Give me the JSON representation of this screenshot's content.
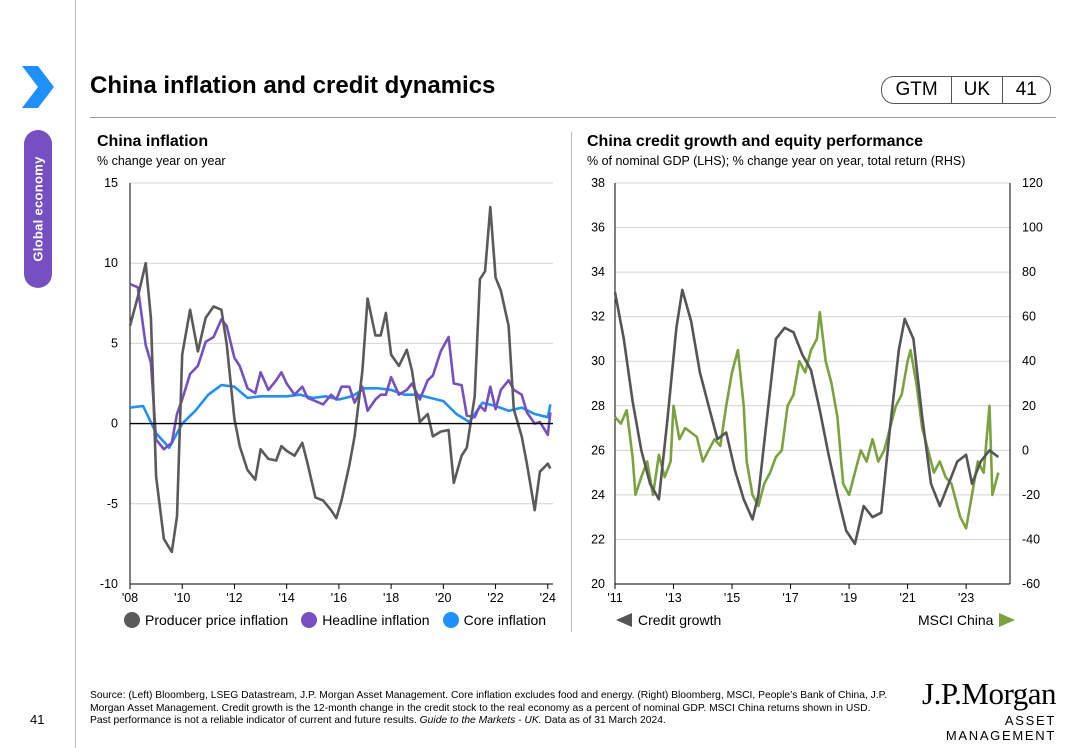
{
  "side_tab": "Global economy",
  "title": "China inflation and credit dynamics",
  "badge": {
    "c1": "GTM",
    "c2": "UK",
    "c3": "41"
  },
  "page_number": "41",
  "footnote": {
    "main": "Source: (Left) Bloomberg, LSEG Datastream, J.P. Morgan Asset Management. Core inflation excludes food and energy. (Right) Bloomberg, MSCI, People’s Bank of China, J.P. Morgan Asset Management. Credit growth is the 12-month change in the credit stock to the real economy as a percent of nominal GDP. MSCI China returns shown in USD. Past performance is not a reliable indicator of current and future results. ",
    "italic": "Guide to the Markets - UK.",
    "end": " Data as of 31 March 2024."
  },
  "logo": {
    "line1": "J.P.Morgan",
    "line2": "ASSET MANAGEMENT"
  },
  "colors": {
    "ppi": "#5a5a5a",
    "headline": "#7650c3",
    "core": "#1e90ff",
    "credit": "#555555",
    "msci": "#7ba23f",
    "accent": "#7650c3",
    "chevron": "#1e90ff"
  },
  "left": {
    "title": "China inflation",
    "subtitle": "% change year on year",
    "legend": {
      "ppi": "Producer price inflation",
      "headline": "Headline inflation",
      "core": "Core inflation"
    }
  },
  "right": {
    "title": "China credit growth and equity performance",
    "subtitle": "% of nominal GDP (LHS); % change year on year, total return (RHS)",
    "legend": {
      "credit": "Credit growth",
      "msci": "MSCI China"
    }
  },
  "chart_data": [
    {
      "type": "line",
      "title": "China inflation",
      "ylabel": "% change year on year",
      "ylim": [
        -10,
        15
      ],
      "yticks": [
        "15",
        "10",
        "5",
        "0",
        "-5",
        "-10"
      ],
      "ytick_values": [
        15,
        10,
        5,
        0,
        -5,
        -10
      ],
      "xlim": [
        2008.0,
        2024.2
      ],
      "xticks": [
        "'08",
        "'10",
        "'12",
        "'14",
        "'16",
        "'18",
        "'20",
        "'22",
        "'24"
      ],
      "xtick_values": [
        2008,
        2010,
        2012,
        2014,
        2016,
        2018,
        2020,
        2022,
        2024
      ],
      "series": [
        {
          "name": "Producer price inflation",
          "key": "ppi",
          "x": [
            2008.0,
            2008.3,
            2008.6,
            2008.8,
            2009.0,
            2009.3,
            2009.6,
            2009.8,
            2010.0,
            2010.3,
            2010.6,
            2010.9,
            2011.2,
            2011.5,
            2011.7,
            2012.0,
            2012.2,
            2012.5,
            2012.8,
            2013.0,
            2013.3,
            2013.6,
            2013.8,
            2014.0,
            2014.3,
            2014.6,
            2014.8,
            2015.1,
            2015.4,
            2015.7,
            2015.9,
            2016.1,
            2016.4,
            2016.6,
            2016.9,
            2017.1,
            2017.4,
            2017.6,
            2017.8,
            2018.0,
            2018.3,
            2018.6,
            2018.8,
            2019.1,
            2019.4,
            2019.6,
            2019.9,
            2020.2,
            2020.4,
            2020.7,
            2020.9,
            2021.2,
            2021.4,
            2021.6,
            2021.8,
            2022.0,
            2022.2,
            2022.5,
            2022.7,
            2023.0,
            2023.2,
            2023.5,
            2023.7,
            2024.0,
            2024.1
          ],
          "y": [
            6.1,
            7.9,
            10.0,
            6.6,
            -3.3,
            -7.2,
            -8.0,
            -5.8,
            4.3,
            7.1,
            4.5,
            6.6,
            7.3,
            7.1,
            5.0,
            0.3,
            -1.4,
            -2.9,
            -3.5,
            -1.6,
            -2.2,
            -2.3,
            -1.4,
            -1.7,
            -2.0,
            -1.2,
            -2.5,
            -4.6,
            -4.8,
            -5.4,
            -5.9,
            -4.8,
            -2.6,
            -0.8,
            3.3,
            7.8,
            5.5,
            5.5,
            6.9,
            4.3,
            3.6,
            4.6,
            3.3,
            0.1,
            0.6,
            -0.8,
            -0.5,
            -0.4,
            -3.7,
            -2.0,
            -1.5,
            1.7,
            9.0,
            9.5,
            13.5,
            9.1,
            8.3,
            6.1,
            0.9,
            -0.8,
            -2.5,
            -5.4,
            -3.0,
            -2.5,
            -2.8
          ]
        },
        {
          "name": "Headline inflation",
          "key": "headline",
          "x": [
            2008.0,
            2008.3,
            2008.6,
            2008.8,
            2009.0,
            2009.3,
            2009.6,
            2009.8,
            2010.0,
            2010.3,
            2010.6,
            2010.9,
            2011.2,
            2011.5,
            2011.7,
            2012.0,
            2012.2,
            2012.5,
            2012.8,
            2013.0,
            2013.3,
            2013.6,
            2013.8,
            2014.0,
            2014.3,
            2014.6,
            2014.8,
            2015.1,
            2015.4,
            2015.7,
            2015.9,
            2016.1,
            2016.4,
            2016.6,
            2016.9,
            2017.1,
            2017.4,
            2017.6,
            2017.8,
            2018.0,
            2018.3,
            2018.6,
            2018.8,
            2019.1,
            2019.4,
            2019.6,
            2019.9,
            2020.2,
            2020.4,
            2020.7,
            2020.9,
            2021.2,
            2021.4,
            2021.6,
            2021.8,
            2022.0,
            2022.2,
            2022.5,
            2022.7,
            2023.0,
            2023.2,
            2023.5,
            2023.7,
            2024.0,
            2024.1
          ],
          "y": [
            8.7,
            8.5,
            4.9,
            3.8,
            -1.0,
            -1.6,
            -1.2,
            0.6,
            1.5,
            3.1,
            3.6,
            5.1,
            5.4,
            6.5,
            6.1,
            4.1,
            3.6,
            2.2,
            1.9,
            3.2,
            2.1,
            2.7,
            3.2,
            2.5,
            1.8,
            2.3,
            1.6,
            1.4,
            1.2,
            1.8,
            1.5,
            2.3,
            2.3,
            1.3,
            2.3,
            0.8,
            1.5,
            1.8,
            1.8,
            2.9,
            1.8,
            2.1,
            2.5,
            1.5,
            2.7,
            3.0,
            4.5,
            5.4,
            2.5,
            2.4,
            0.5,
            0.4,
            1.1,
            0.8,
            2.3,
            0.9,
            2.1,
            2.7,
            2.1,
            1.8,
            0.7,
            0.0,
            0.1,
            -0.7,
            0.7
          ]
        },
        {
          "name": "Core inflation",
          "key": "core",
          "x": [
            2008.0,
            2008.5,
            2009.0,
            2009.5,
            2010.0,
            2010.5,
            2011.0,
            2011.5,
            2012.0,
            2012.5,
            2013.0,
            2013.5,
            2014.0,
            2014.5,
            2015.0,
            2015.5,
            2016.0,
            2016.5,
            2017.0,
            2017.5,
            2018.0,
            2018.5,
            2019.0,
            2019.5,
            2020.0,
            2020.5,
            2021.0,
            2021.5,
            2022.0,
            2022.5,
            2023.0,
            2023.5,
            2024.0,
            2024.1
          ],
          "y": [
            1.0,
            1.1,
            -0.6,
            -1.5,
            0.0,
            0.8,
            1.8,
            2.4,
            2.3,
            1.6,
            1.7,
            1.7,
            1.7,
            1.8,
            1.6,
            1.7,
            1.5,
            1.7,
            2.2,
            2.2,
            2.1,
            1.8,
            1.8,
            1.6,
            1.4,
            0.6,
            0.1,
            1.3,
            1.1,
            0.8,
            1.0,
            0.6,
            0.4,
            1.2
          ]
        }
      ]
    },
    {
      "type": "line",
      "title": "China credit growth and equity performance",
      "ylabel": "% of nominal GDP (LHS); % change year on year, total return (RHS)",
      "ylim_left": [
        20,
        38
      ],
      "ylim_right": [
        -60,
        120
      ],
      "yticks_left": [
        "38",
        "36",
        "34",
        "32",
        "30",
        "28",
        "26",
        "24",
        "22",
        "20"
      ],
      "ytick_values_left": [
        38,
        36,
        34,
        32,
        30,
        28,
        26,
        24,
        22,
        20
      ],
      "yticks_right": [
        "120",
        "100",
        "80",
        "60",
        "40",
        "20",
        "0",
        "-20",
        "-40",
        "-60"
      ],
      "ytick_values_right": [
        120,
        100,
        80,
        60,
        40,
        20,
        0,
        -20,
        -40,
        -60
      ],
      "xlim": [
        2011.0,
        2024.5
      ],
      "xticks": [
        "'11",
        "'13",
        "'15",
        "'17",
        "'19",
        "'21",
        "'23"
      ],
      "xtick_values": [
        2011,
        2013,
        2015,
        2017,
        2019,
        2021,
        2023
      ],
      "series": [
        {
          "name": "Credit growth",
          "key": "credit",
          "axis": "left",
          "x": [
            2011.0,
            2011.3,
            2011.6,
            2011.9,
            2012.2,
            2012.5,
            2012.8,
            2013.1,
            2013.3,
            2013.6,
            2013.9,
            2014.2,
            2014.5,
            2014.8,
            2015.1,
            2015.4,
            2015.7,
            2015.9,
            2016.2,
            2016.5,
            2016.8,
            2017.1,
            2017.4,
            2017.7,
            2018.0,
            2018.3,
            2018.6,
            2018.9,
            2019.2,
            2019.5,
            2019.8,
            2020.1,
            2020.4,
            2020.7,
            2020.9,
            2021.2,
            2021.5,
            2021.8,
            2022.1,
            2022.4,
            2022.7,
            2023.0,
            2023.2,
            2023.5,
            2023.8,
            2024.1
          ],
          "y": [
            33.1,
            31.0,
            28.2,
            26.0,
            24.5,
            23.8,
            27.5,
            31.5,
            33.2,
            31.8,
            29.5,
            28.0,
            26.5,
            26.8,
            25.1,
            23.8,
            22.9,
            24.0,
            27.5,
            31.0,
            31.5,
            31.3,
            30.3,
            29.6,
            27.8,
            25.8,
            24.0,
            22.4,
            21.8,
            23.5,
            23.0,
            23.2,
            27.0,
            30.5,
            31.9,
            31.0,
            27.5,
            24.5,
            23.5,
            24.5,
            25.5,
            25.8,
            24.5,
            25.5,
            26.0,
            25.7
          ]
        },
        {
          "name": "MSCI China",
          "key": "msci",
          "axis": "right",
          "x": [
            2011.0,
            2011.2,
            2011.4,
            2011.6,
            2011.7,
            2011.9,
            2012.1,
            2012.3,
            2012.5,
            2012.7,
            2012.9,
            2013.0,
            2013.2,
            2013.4,
            2013.6,
            2013.8,
            2014.0,
            2014.2,
            2014.4,
            2014.6,
            2014.8,
            2015.0,
            2015.2,
            2015.4,
            2015.5,
            2015.7,
            2015.9,
            2016.1,
            2016.3,
            2016.5,
            2016.7,
            2016.9,
            2017.1,
            2017.3,
            2017.5,
            2017.7,
            2017.9,
            2018.0,
            2018.2,
            2018.4,
            2018.6,
            2018.8,
            2019.0,
            2019.2,
            2019.4,
            2019.6,
            2019.8,
            2020.0,
            2020.2,
            2020.4,
            2020.6,
            2020.8,
            2021.0,
            2021.1,
            2021.3,
            2021.5,
            2021.7,
            2021.9,
            2022.1,
            2022.3,
            2022.5,
            2022.7,
            2022.8,
            2023.0,
            2023.2,
            2023.4,
            2023.6,
            2023.8,
            2023.9,
            2024.1
          ],
          "y": [
            15,
            12,
            18,
            -3,
            -20,
            -12,
            -5,
            -20,
            -2,
            -12,
            -5,
            20,
            5,
            10,
            8,
            6,
            -5,
            0,
            5,
            2,
            20,
            35,
            45,
            20,
            -5,
            -20,
            -25,
            -15,
            -10,
            -3,
            0,
            20,
            25,
            40,
            35,
            45,
            50,
            62,
            40,
            30,
            15,
            -15,
            -20,
            -10,
            0,
            -5,
            5,
            -5,
            0,
            10,
            20,
            25,
            40,
            45,
            30,
            10,
            0,
            -10,
            -5,
            -12,
            -15,
            -25,
            -30,
            -35,
            -20,
            -5,
            -10,
            20,
            -20,
            -10
          ]
        }
      ]
    }
  ]
}
